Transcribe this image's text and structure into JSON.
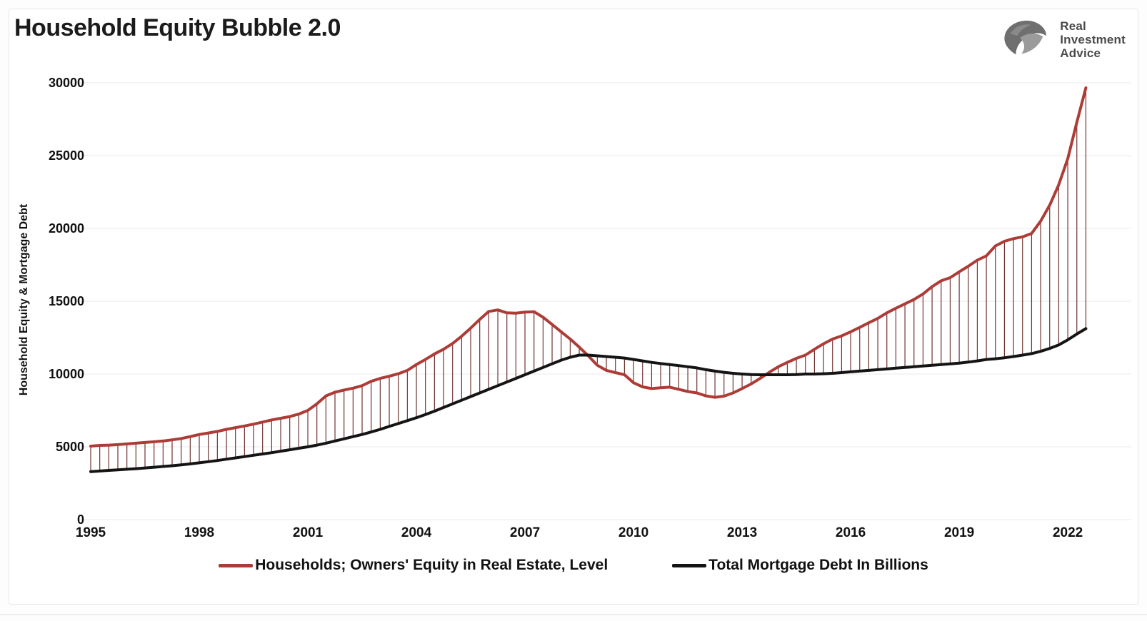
{
  "page": {
    "title": "Household Equity Bubble 2.0"
  },
  "logo": {
    "icon": "eagle-icon",
    "line1": "Real",
    "line2": "Investment",
    "line3": "Advice"
  },
  "chart_data": {
    "type": "line",
    "title": "Household Equity Bubble 2.0",
    "xlabel": "",
    "ylabel": "Household Equity & Mortgage Debt",
    "x_start": 1995,
    "x_step": 0.25,
    "x_ticks": [
      1995,
      1998,
      2001,
      2004,
      2007,
      2010,
      2013,
      2016,
      2019,
      2022
    ],
    "y_ticks": [
      0,
      5000,
      10000,
      15000,
      20000,
      25000,
      30000
    ],
    "xlim": [
      1995,
      2023
    ],
    "ylim": [
      0,
      30000
    ],
    "grid": "horizontal",
    "grid_color": "#eeeeee",
    "hatch_between_series": true,
    "hatch_color": "#6e3331",
    "legend_position": "bottom",
    "series": [
      {
        "name": "Households; Owners' Equity in Real Estate, Level",
        "color": "#ad3c37",
        "values": [
          5050,
          5100,
          5120,
          5150,
          5200,
          5250,
          5300,
          5350,
          5400,
          5480,
          5570,
          5700,
          5850,
          5950,
          6060,
          6200,
          6320,
          6430,
          6560,
          6700,
          6850,
          6960,
          7080,
          7250,
          7500,
          7950,
          8500,
          8750,
          8900,
          9030,
          9200,
          9500,
          9700,
          9850,
          10020,
          10250,
          10650,
          11000,
          11380,
          11700,
          12100,
          12600,
          13150,
          13750,
          14300,
          14400,
          14200,
          14180,
          14250,
          14280,
          13900,
          13400,
          12900,
          12400,
          11850,
          11250,
          10600,
          10250,
          10100,
          9950,
          9400,
          9120,
          9000,
          9060,
          9100,
          8950,
          8800,
          8700,
          8500,
          8400,
          8480,
          8700,
          9000,
          9320,
          9700,
          10120,
          10500,
          10800,
          11080,
          11300,
          11700,
          12080,
          12400,
          12620,
          12900,
          13200,
          13520,
          13820,
          14200,
          14520,
          14820,
          15120,
          15500,
          16000,
          16400,
          16620,
          17020,
          17400,
          17820,
          18120,
          18800,
          19120,
          19300,
          19420,
          19650,
          20500,
          21600,
          23000,
          24800,
          27300,
          29650
        ]
      },
      {
        "name": "Total Mortgage Debt In Billions",
        "color": "#141414",
        "values": [
          3300,
          3340,
          3380,
          3420,
          3460,
          3500,
          3550,
          3600,
          3650,
          3700,
          3760,
          3830,
          3900,
          3980,
          4060,
          4150,
          4240,
          4330,
          4420,
          4510,
          4600,
          4700,
          4800,
          4900,
          5000,
          5120,
          5250,
          5400,
          5550,
          5700,
          5850,
          6020,
          6200,
          6400,
          6600,
          6800,
          7000,
          7220,
          7450,
          7700,
          7950,
          8200,
          8450,
          8700,
          8950,
          9200,
          9450,
          9700,
          9950,
          10200,
          10450,
          10700,
          10950,
          11150,
          11300,
          11300,
          11250,
          11200,
          11150,
          11100,
          11000,
          10900,
          10800,
          10720,
          10650,
          10580,
          10500,
          10420,
          10300,
          10200,
          10120,
          10050,
          10000,
          9960,
          9950,
          9950,
          9950,
          9950,
          9960,
          10000,
          10000,
          10020,
          10050,
          10100,
          10150,
          10200,
          10250,
          10300,
          10350,
          10400,
          10450,
          10500,
          10550,
          10600,
          10650,
          10700,
          10750,
          10820,
          10900,
          11000,
          11050,
          11120,
          11200,
          11300,
          11400,
          11560,
          11760,
          12000,
          12350,
          12750,
          13120
        ]
      }
    ]
  }
}
